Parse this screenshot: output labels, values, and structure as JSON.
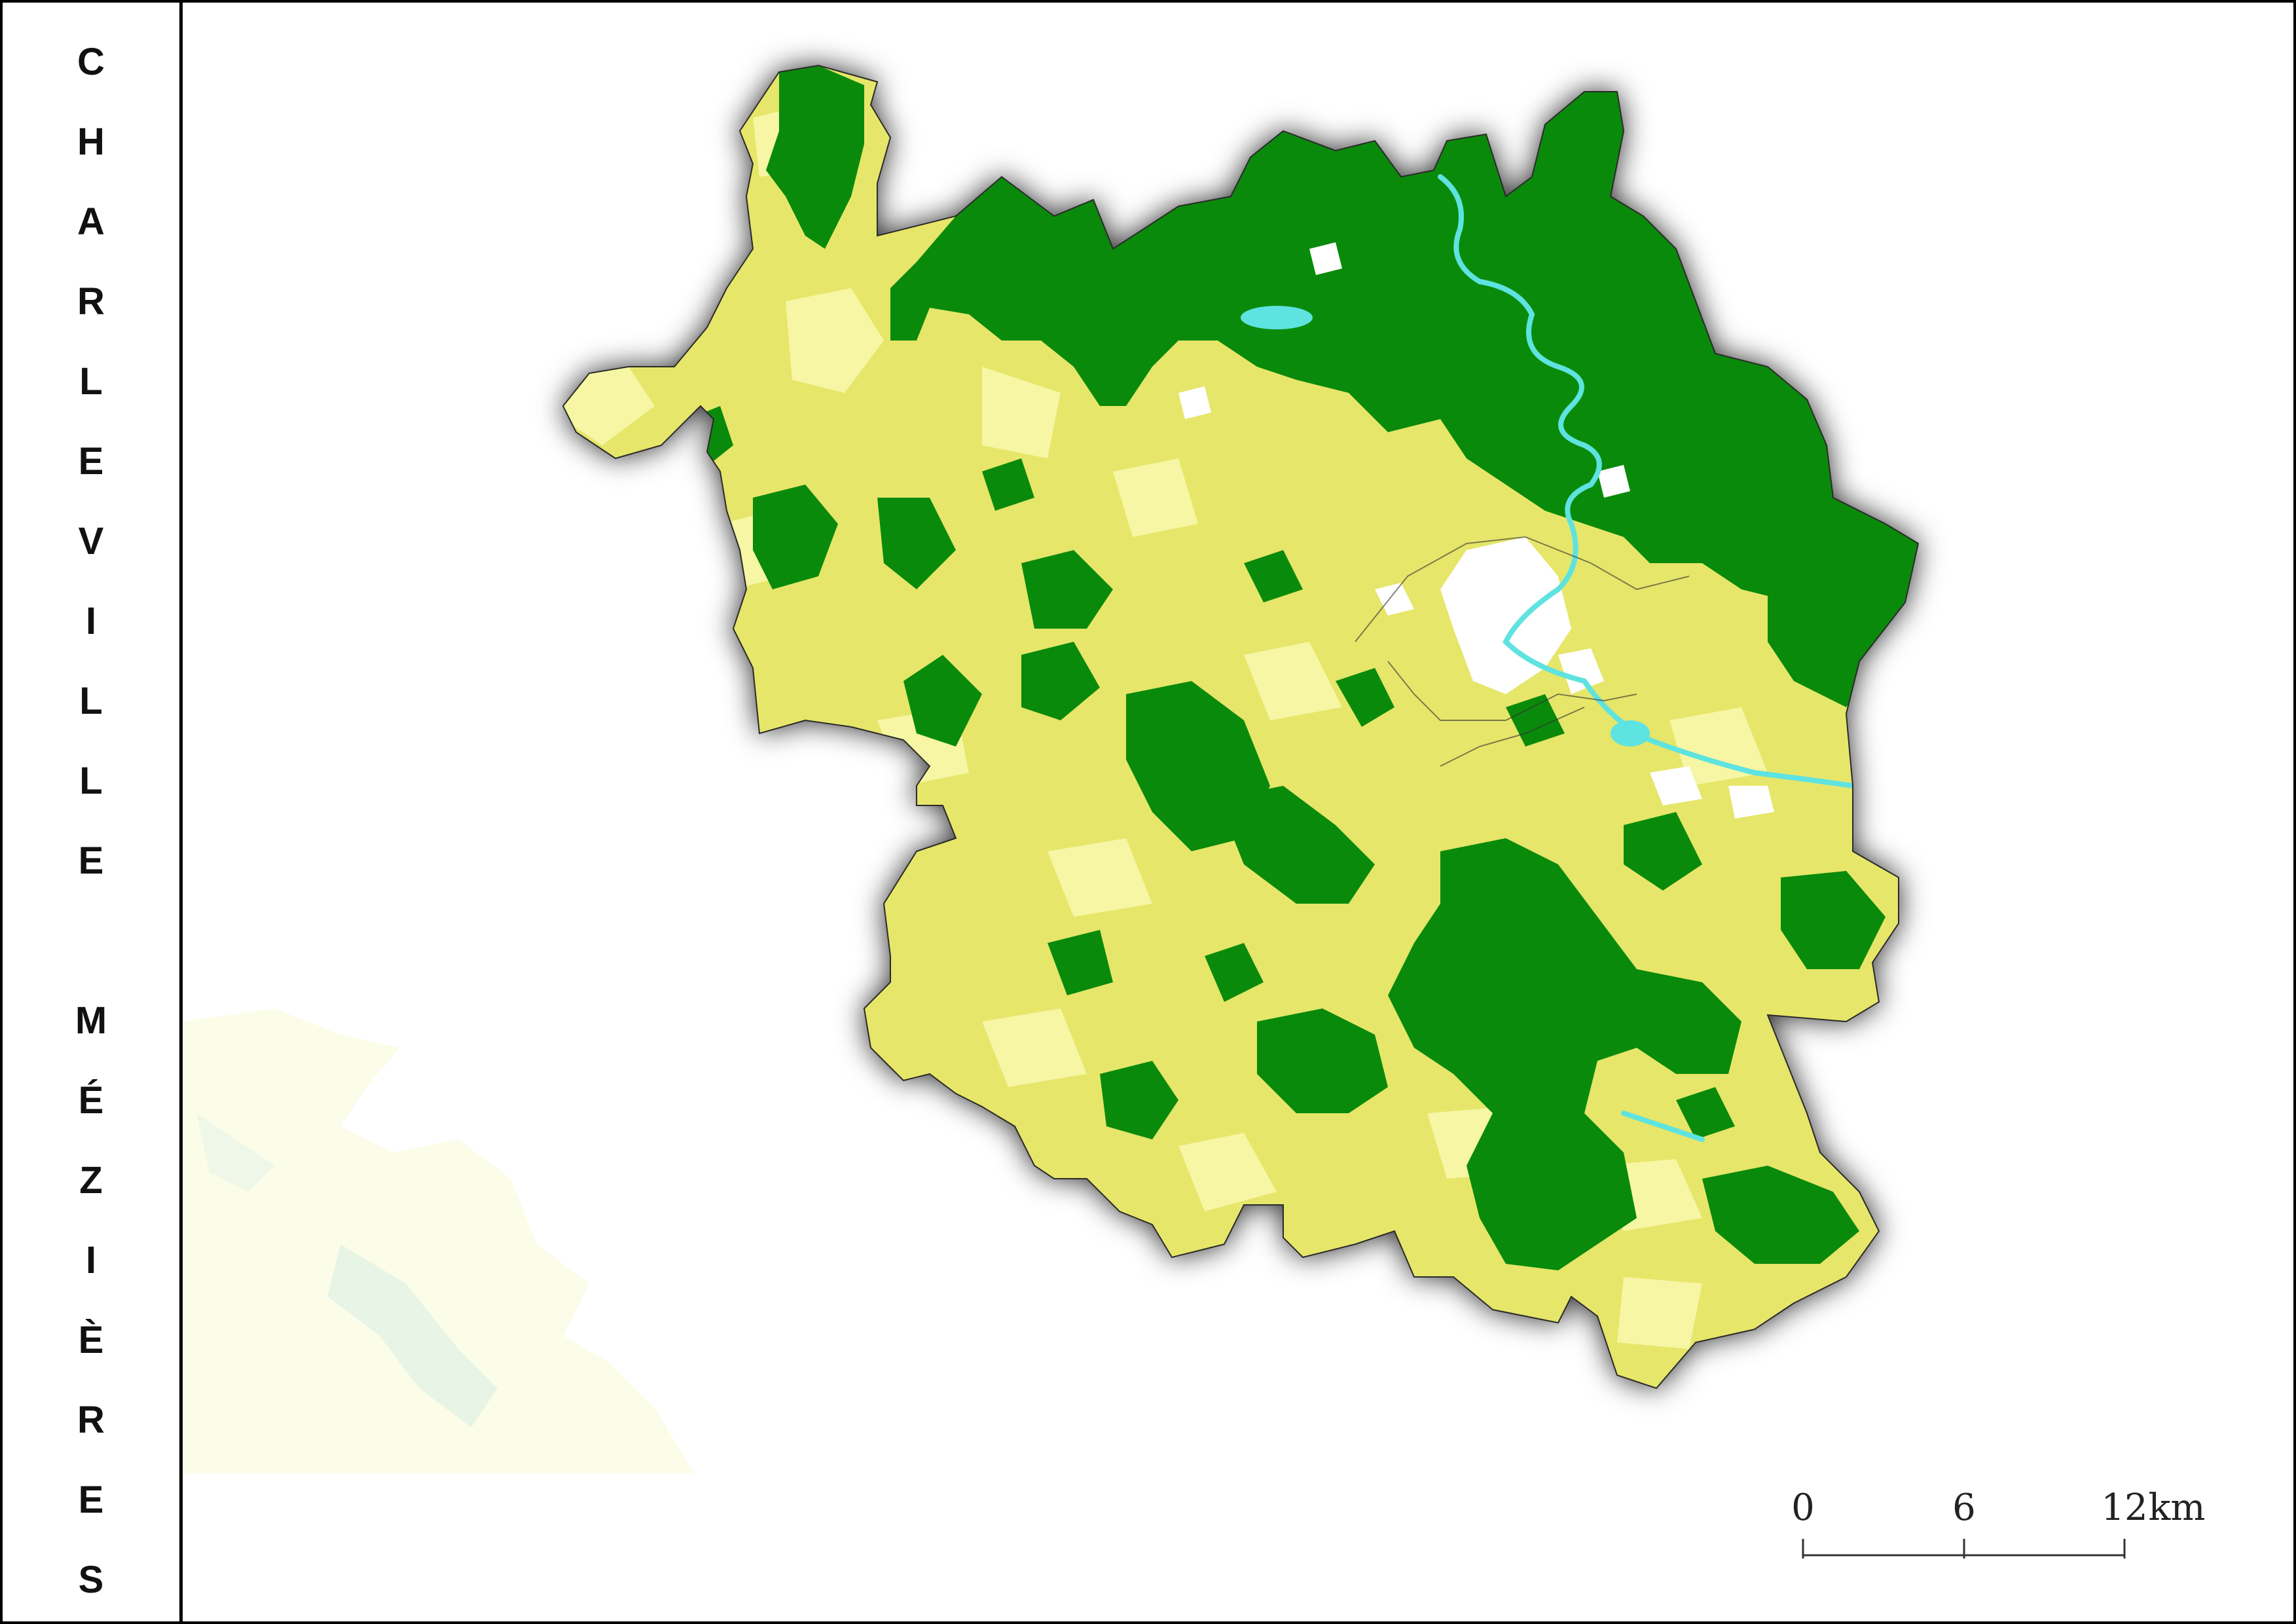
{
  "title": {
    "line1": "CHARLEVILLE",
    "line2": "MÉZIÈRES"
  },
  "scale_bar": {
    "ticks": [
      "0",
      "6",
      "12"
    ],
    "unit": "km"
  },
  "legend_colors": {
    "forest": "#0a8a0a",
    "agriculture": "#e6e66a",
    "pasture": "#f6f6a4",
    "urban": "#ffffff",
    "water": "#5ee3e0"
  }
}
